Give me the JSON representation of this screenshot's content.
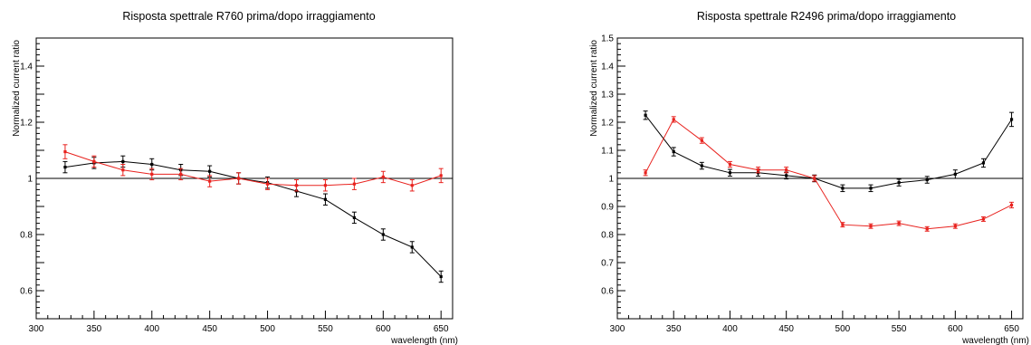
{
  "chart_data": [
    {
      "type": "line",
      "title": "Risposta spettrale R760 prima/dopo irraggiamento",
      "xlabel": "wavelength (nm)",
      "ylabel": "Normalized current ratio",
      "xlim": [
        300,
        660
      ],
      "ylim": [
        0.5,
        1.5
      ],
      "xticks": [
        300,
        350,
        400,
        450,
        500,
        550,
        600,
        650
      ],
      "yticks": [
        0.6,
        0.8,
        1,
        1.2,
        1.4
      ],
      "ytick_labels": [
        "0.6",
        "0.8",
        "1",
        "1.2",
        "1.4"
      ],
      "reference_line": 1,
      "grid": false,
      "series": [
        {
          "color": "#000000",
          "x": [
            325,
            350,
            375,
            400,
            425,
            450,
            475,
            500,
            525,
            550,
            575,
            600,
            625,
            650
          ],
          "y": [
            1.04,
            1.055,
            1.06,
            1.05,
            1.03,
            1.025,
            1.0,
            0.985,
            0.955,
            0.925,
            0.86,
            0.8,
            0.755,
            0.65
          ],
          "err": [
            0.02,
            0.02,
            0.02,
            0.02,
            0.02,
            0.02,
            0.02,
            0.02,
            0.02,
            0.02,
            0.02,
            0.02,
            0.02,
            0.02
          ]
        },
        {
          "color": "#e8221e",
          "x": [
            325,
            350,
            375,
            400,
            425,
            450,
            475,
            500,
            525,
            550,
            575,
            600,
            625,
            650
          ],
          "y": [
            1.095,
            1.06,
            1.03,
            1.015,
            1.015,
            0.99,
            1.0,
            0.98,
            0.975,
            0.975,
            0.98,
            1.005,
            0.975,
            1.01
          ],
          "err": [
            0.025,
            0.02,
            0.02,
            0.02,
            0.02,
            0.02,
            0.02,
            0.02,
            0.02,
            0.02,
            0.02,
            0.02,
            0.02,
            0.025
          ]
        }
      ]
    },
    {
      "type": "line",
      "title": "Risposta spettrale R2496 prima/dopo irraggiamento",
      "xlabel": "wavelength (nm)",
      "ylabel": "Normalized current ratio",
      "xlim": [
        300,
        660
      ],
      "ylim": [
        0.5,
        1.5
      ],
      "xticks": [
        300,
        350,
        400,
        450,
        500,
        550,
        600,
        650
      ],
      "yticks": [
        0.6,
        0.7,
        0.8,
        0.9,
        1,
        1.1,
        1.2,
        1.3,
        1.4,
        1.5
      ],
      "ytick_labels": [
        "0.6",
        "0.7",
        "0.8",
        "0.9",
        "1",
        "1.1",
        "1.2",
        "1.3",
        "1.4",
        "1.5"
      ],
      "reference_line": 1,
      "grid": false,
      "series": [
        {
          "color": "#000000",
          "x": [
            325,
            350,
            375,
            400,
            425,
            450,
            475,
            500,
            525,
            550,
            575,
            600,
            625,
            650
          ],
          "y": [
            1.225,
            1.095,
            1.045,
            1.02,
            1.02,
            1.01,
            1.0,
            0.965,
            0.965,
            0.985,
            0.995,
            1.015,
            1.055,
            1.21
          ],
          "err": [
            0.015,
            0.015,
            0.012,
            0.012,
            0.012,
            0.012,
            0.012,
            0.012,
            0.012,
            0.012,
            0.012,
            0.015,
            0.015,
            0.025
          ]
        },
        {
          "color": "#e8221e",
          "x": [
            325,
            350,
            375,
            400,
            425,
            450,
            475,
            500,
            525,
            550,
            575,
            600,
            625,
            650
          ],
          "y": [
            1.02,
            1.21,
            1.135,
            1.05,
            1.03,
            1.03,
            1.0,
            0.835,
            0.83,
            0.84,
            0.82,
            0.83,
            0.855,
            0.905
          ],
          "err": [
            0.01,
            0.01,
            0.01,
            0.01,
            0.01,
            0.01,
            0.01,
            0.008,
            0.008,
            0.008,
            0.008,
            0.008,
            0.008,
            0.01
          ]
        }
      ]
    }
  ]
}
